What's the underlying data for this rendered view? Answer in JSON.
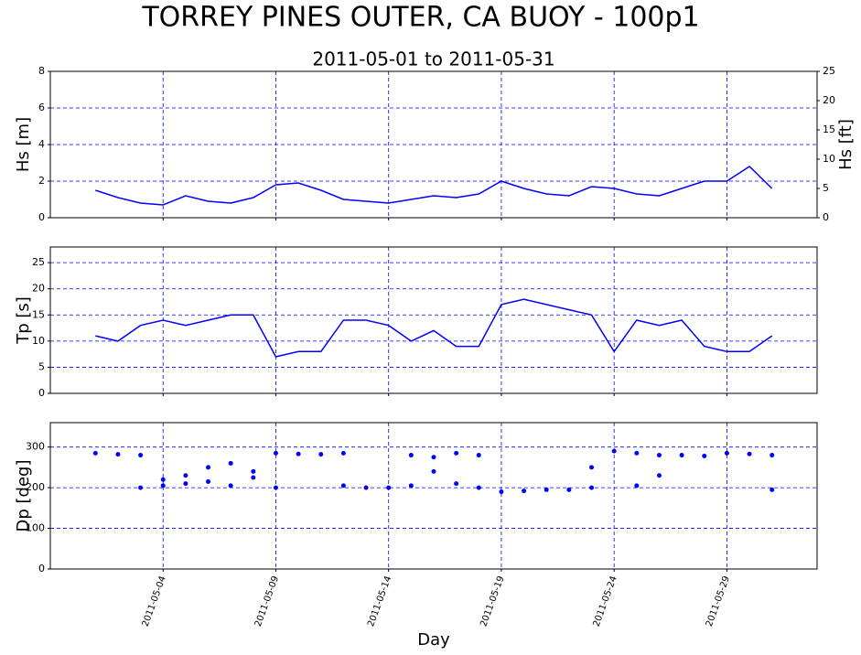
{
  "title": "TORREY PINES OUTER, CA BUOY - 100p1",
  "chart_data": [
    {
      "type": "line",
      "title": "2011-05-01 to 2011-05-31",
      "ylabel": "Hs [m]",
      "y2label": "Hs [ft]",
      "x": [
        "2011-05-01",
        "2011-05-02",
        "2011-05-03",
        "2011-05-04",
        "2011-05-05",
        "2011-05-06",
        "2011-05-07",
        "2011-05-08",
        "2011-05-09",
        "2011-05-10",
        "2011-05-11",
        "2011-05-12",
        "2011-05-13",
        "2011-05-14",
        "2011-05-15",
        "2011-05-16",
        "2011-05-17",
        "2011-05-18",
        "2011-05-19",
        "2011-05-20",
        "2011-05-21",
        "2011-05-22",
        "2011-05-23",
        "2011-05-24",
        "2011-05-25",
        "2011-05-26",
        "2011-05-27",
        "2011-05-28",
        "2011-05-29",
        "2011-05-30",
        "2011-05-31"
      ],
      "series": [
        {
          "name": "Hs",
          "color": "#0000ff",
          "values": [
            1.5,
            1.1,
            0.8,
            0.7,
            1.2,
            0.9,
            0.8,
            1.1,
            1.8,
            1.9,
            1.5,
            1.0,
            0.9,
            0.8,
            1.0,
            1.2,
            1.1,
            1.3,
            2.0,
            1.6,
            1.3,
            1.2,
            1.7,
            1.6,
            1.3,
            1.2,
            1.6,
            2.0,
            2.0,
            2.8,
            1.6
          ]
        }
      ],
      "xlim": [
        "2011-04-29",
        "2011-06-02"
      ],
      "xticks": [
        "2011-05-04",
        "2011-05-09",
        "2011-05-14",
        "2011-05-19",
        "2011-05-24",
        "2011-05-29"
      ],
      "ylim": [
        0,
        8
      ],
      "yticks": [
        0,
        2,
        4,
        6,
        8
      ],
      "y2lim": [
        0,
        25
      ],
      "y2ticks": [
        0,
        5,
        10,
        15,
        20,
        25
      ],
      "grid": true
    },
    {
      "type": "line",
      "ylabel": "Tp [s]",
      "x": [
        "2011-05-01",
        "2011-05-02",
        "2011-05-03",
        "2011-05-04",
        "2011-05-05",
        "2011-05-06",
        "2011-05-07",
        "2011-05-08",
        "2011-05-09",
        "2011-05-10",
        "2011-05-11",
        "2011-05-12",
        "2011-05-13",
        "2011-05-14",
        "2011-05-15",
        "2011-05-16",
        "2011-05-17",
        "2011-05-18",
        "2011-05-19",
        "2011-05-20",
        "2011-05-21",
        "2011-05-22",
        "2011-05-23",
        "2011-05-24",
        "2011-05-25",
        "2011-05-26",
        "2011-05-27",
        "2011-05-28",
        "2011-05-29",
        "2011-05-30",
        "2011-05-31"
      ],
      "series": [
        {
          "name": "Tp",
          "color": "#0000ff",
          "values": [
            11,
            10,
            13,
            14,
            13,
            14,
            15,
            15,
            7,
            8,
            8,
            14,
            14,
            13,
            10,
            12,
            9,
            9,
            17,
            18,
            17,
            16,
            15,
            8,
            14,
            13,
            14,
            9,
            8,
            8,
            11
          ]
        }
      ],
      "xlim": [
        "2011-04-29",
        "2011-06-02"
      ],
      "xticks": [
        "2011-05-04",
        "2011-05-09",
        "2011-05-14",
        "2011-05-19",
        "2011-05-24",
        "2011-05-29"
      ],
      "ylim": [
        0,
        28
      ],
      "yticks": [
        0,
        5,
        10,
        15,
        20,
        25
      ],
      "grid": true
    },
    {
      "type": "scatter",
      "ylabel": "Dp [deg]",
      "xlabel": "Day",
      "x": [
        "2011-05-01",
        "2011-05-02",
        "2011-05-03",
        "2011-05-03",
        "2011-05-04",
        "2011-05-04",
        "2011-05-05",
        "2011-05-05",
        "2011-05-06",
        "2011-05-06",
        "2011-05-07",
        "2011-05-07",
        "2011-05-08",
        "2011-05-08",
        "2011-05-09",
        "2011-05-09",
        "2011-05-10",
        "2011-05-11",
        "2011-05-12",
        "2011-05-12",
        "2011-05-13",
        "2011-05-14",
        "2011-05-15",
        "2011-05-15",
        "2011-05-16",
        "2011-05-16",
        "2011-05-17",
        "2011-05-17",
        "2011-05-18",
        "2011-05-18",
        "2011-05-19",
        "2011-05-20",
        "2011-05-21",
        "2011-05-22",
        "2011-05-23",
        "2011-05-23",
        "2011-05-24",
        "2011-05-25",
        "2011-05-25",
        "2011-05-26",
        "2011-05-26",
        "2011-05-27",
        "2011-05-28",
        "2011-05-29",
        "2011-05-30",
        "2011-05-31",
        "2011-05-31"
      ],
      "series": [
        {
          "name": "Dp",
          "color": "#0000ff",
          "values": [
            285,
            282,
            280,
            200,
            205,
            220,
            230,
            210,
            250,
            215,
            260,
            205,
            240,
            225,
            285,
            200,
            283,
            282,
            285,
            205,
            200,
            200,
            280,
            205,
            275,
            240,
            285,
            210,
            280,
            200,
            190,
            192,
            195,
            195,
            200,
            250,
            290,
            285,
            205,
            280,
            230,
            280,
            278,
            285,
            283,
            280,
            195
          ]
        }
      ],
      "xlim": [
        "2011-04-29",
        "2011-06-02"
      ],
      "xticks": [
        "2011-05-04",
        "2011-05-09",
        "2011-05-14",
        "2011-05-19",
        "2011-05-24",
        "2011-05-29"
      ],
      "ylim": [
        0,
        360
      ],
      "yticks": [
        0,
        100,
        200,
        300
      ],
      "grid": true
    }
  ]
}
